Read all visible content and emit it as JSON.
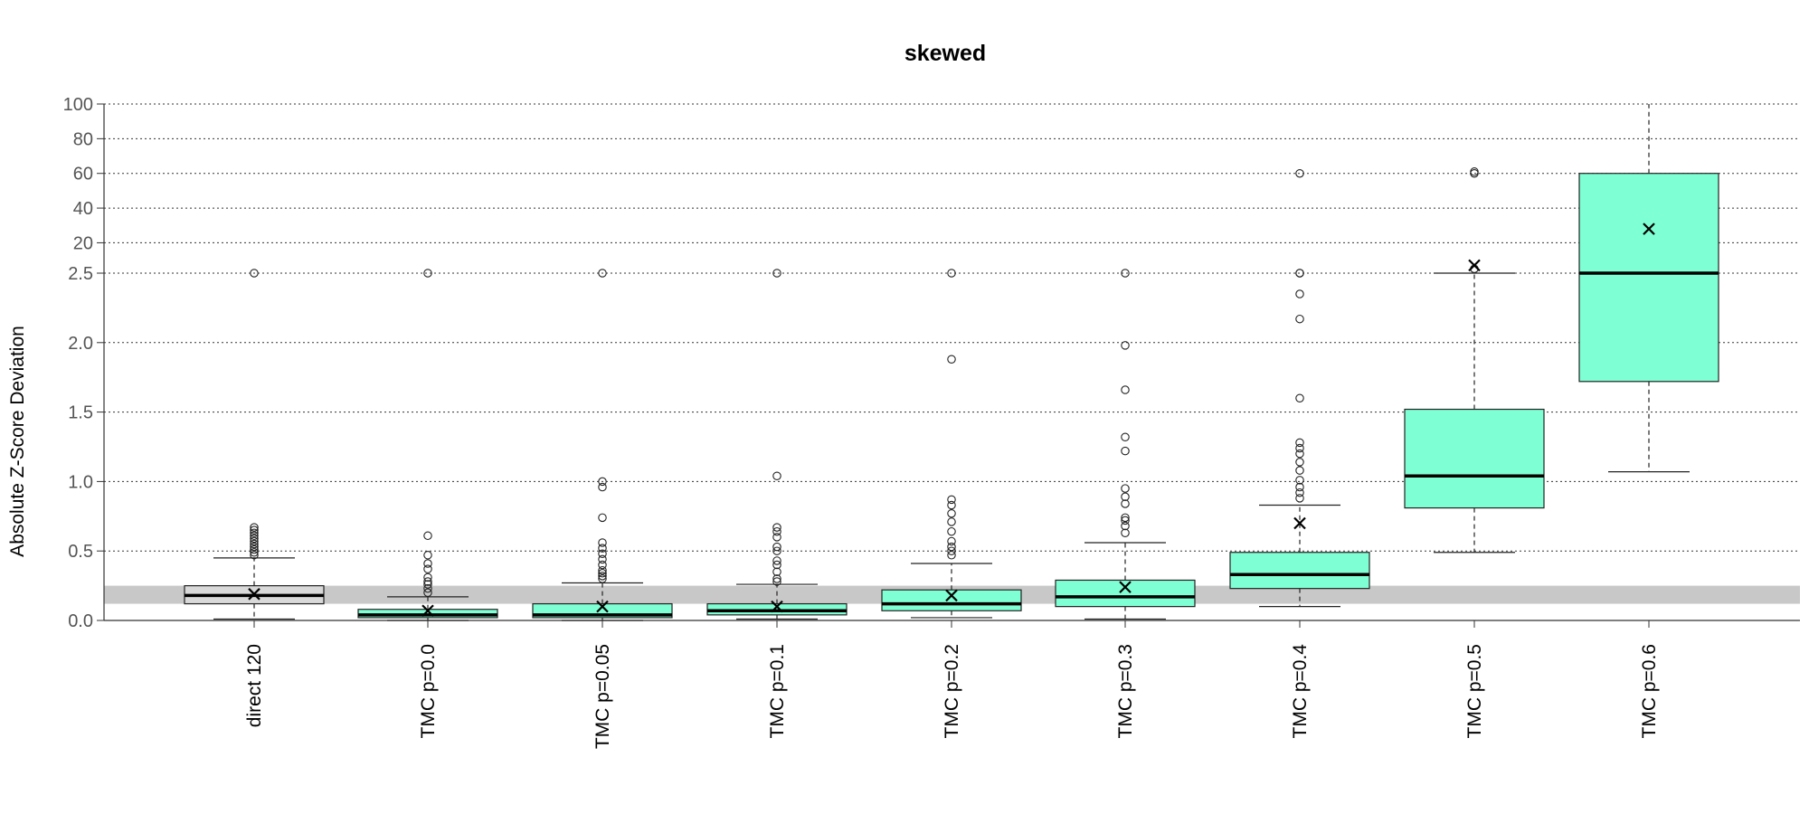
{
  "chart_data": {
    "type": "box",
    "title": "skewed",
    "xlabel": "",
    "ylabel": "Absolute Z-Score Deviation",
    "y_axis": {
      "lower_segment": {
        "range": [
          0,
          2.5
        ],
        "ticks": [
          "0.0",
          "0.5",
          "1.0",
          "1.5",
          "2.0",
          "2.5"
        ]
      },
      "upper_segment": {
        "range": [
          2.5,
          100
        ],
        "ticks": [
          "20",
          "40",
          "60",
          "80",
          "100"
        ]
      }
    },
    "grid": true,
    "reference_band": [
      0.12,
      0.25
    ],
    "colors": {
      "direct": "#d9d9d9",
      "tmc": "#7fffd4",
      "band": "#c8c8c8"
    },
    "categories": [
      "direct 120",
      "TMC p=0.0",
      "TMC p=0.05",
      "TMC p=0.1",
      "TMC p=0.2",
      "TMC p=0.3",
      "TMC p=0.4",
      "TMC p=0.5",
      "TMC p=0.6"
    ],
    "boxes": [
      {
        "category": "direct 120",
        "whisker_low": 0.01,
        "q1": 0.12,
        "median": 0.18,
        "q3": 0.25,
        "whisker_high": 0.45,
        "mean": 0.19,
        "outliers": [
          0.47,
          0.49,
          0.51,
          0.53,
          0.55,
          0.57,
          0.59,
          0.61,
          0.63,
          0.65,
          0.67,
          2.5
        ]
      },
      {
        "category": "TMC p=0.0",
        "whisker_low": 0.0,
        "q1": 0.02,
        "median": 0.04,
        "q3": 0.08,
        "whisker_high": 0.17,
        "mean": 0.07,
        "outliers": [
          0.2,
          0.23,
          0.26,
          0.28,
          0.31,
          0.37,
          0.41,
          0.47,
          0.61,
          2.5
        ]
      },
      {
        "category": "TMC p=0.05",
        "whisker_low": 0.0,
        "q1": 0.02,
        "median": 0.04,
        "q3": 0.12,
        "whisker_high": 0.27,
        "mean": 0.1,
        "outliers": [
          0.3,
          0.32,
          0.34,
          0.36,
          0.4,
          0.44,
          0.48,
          0.52,
          0.56,
          0.74,
          0.96,
          1.0,
          2.5
        ]
      },
      {
        "category": "TMC p=0.1",
        "whisker_low": 0.01,
        "q1": 0.04,
        "median": 0.07,
        "q3": 0.12,
        "whisker_high": 0.26,
        "mean": 0.1,
        "outliers": [
          0.28,
          0.3,
          0.35,
          0.4,
          0.43,
          0.5,
          0.53,
          0.6,
          0.64,
          0.67,
          1.04,
          2.5
        ]
      },
      {
        "category": "TMC p=0.2",
        "whisker_low": 0.02,
        "q1": 0.07,
        "median": 0.12,
        "q3": 0.22,
        "whisker_high": 0.41,
        "mean": 0.18,
        "outliers": [
          0.47,
          0.5,
          0.53,
          0.57,
          0.64,
          0.71,
          0.77,
          0.83,
          0.87,
          1.88,
          2.5
        ]
      },
      {
        "category": "TMC p=0.3",
        "whisker_low": 0.01,
        "q1": 0.1,
        "median": 0.17,
        "q3": 0.29,
        "whisker_high": 0.56,
        "mean": 0.24,
        "outliers": [
          0.63,
          0.68,
          0.72,
          0.74,
          0.84,
          0.89,
          0.95,
          1.22,
          1.32,
          1.66,
          1.98,
          2.5
        ]
      },
      {
        "category": "TMC p=0.4",
        "whisker_low": 0.1,
        "q1": 0.23,
        "median": 0.33,
        "q3": 0.49,
        "whisker_high": 0.83,
        "mean": 0.7,
        "outliers": [
          0.88,
          0.92,
          0.96,
          1.01,
          1.08,
          1.14,
          1.2,
          1.24,
          1.28,
          1.6,
          2.17,
          2.35,
          2.5,
          2.52,
          60
        ]
      },
      {
        "category": "TMC p=0.5",
        "whisker_low": 0.49,
        "q1": 0.81,
        "median": 1.04,
        "q3": 1.52,
        "whisker_high": 2.5,
        "mean": 7,
        "outliers": [
          5,
          60,
          61
        ]
      },
      {
        "category": "TMC p=0.6",
        "whisker_low": 1.07,
        "q1": 1.72,
        "median": 2.52,
        "q3": 60,
        "whisker_high": 100,
        "mean": 28,
        "outliers": []
      }
    ]
  }
}
